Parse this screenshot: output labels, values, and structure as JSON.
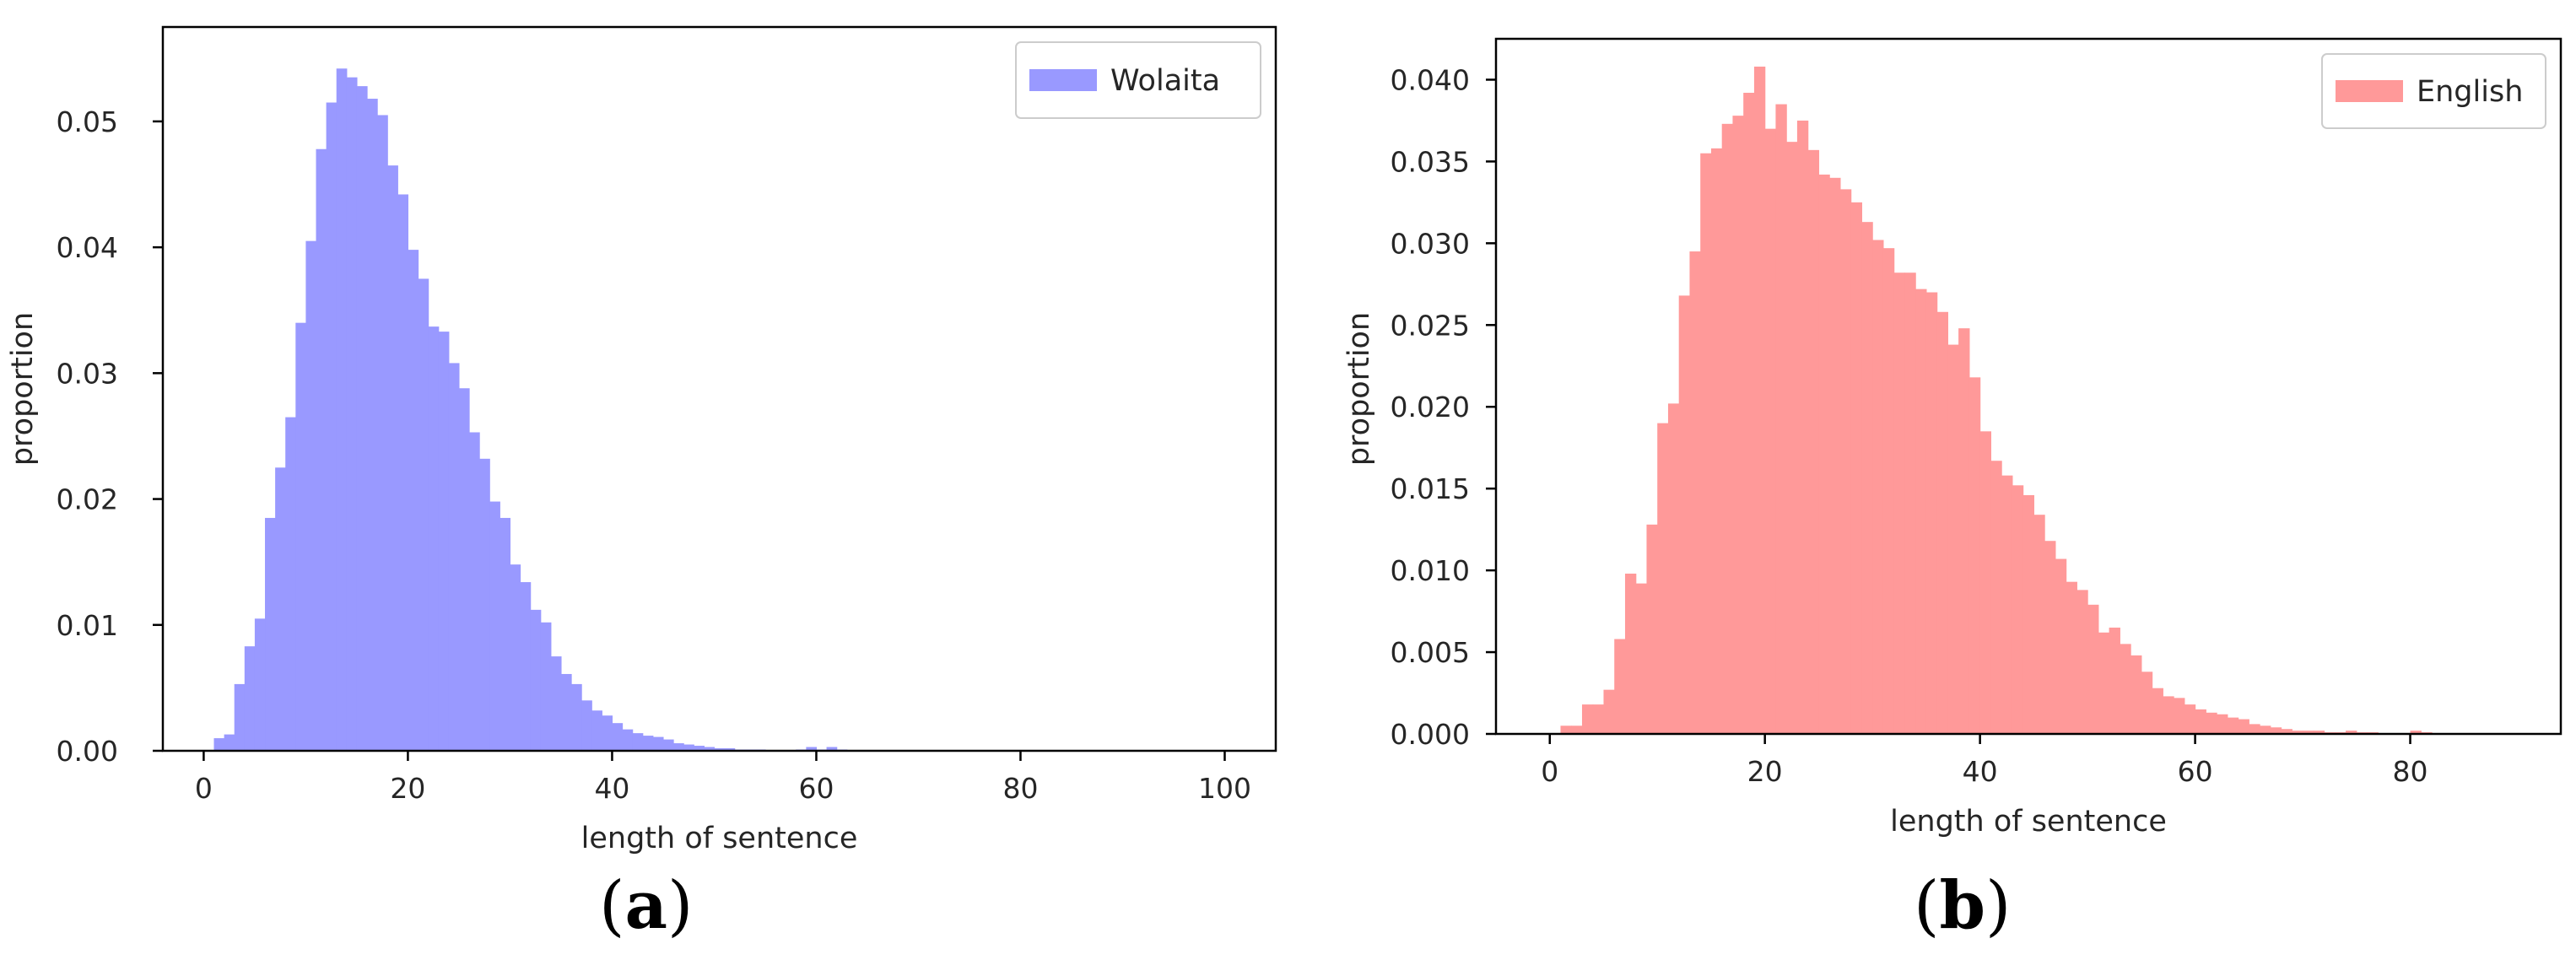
{
  "chart_data": [
    {
      "panel": "(a)",
      "type": "bar",
      "xlabel": "length of sentence",
      "ylabel": "proportion",
      "xlim": [
        -4,
        105
      ],
      "ylim": [
        0,
        0.0575
      ],
      "xticks": [
        0,
        20,
        40,
        60,
        80,
        100
      ],
      "yticks": [
        0.0,
        0.01,
        0.02,
        0.03,
        0.04,
        0.05
      ],
      "ytick_labels": [
        "0.00",
        "0.01",
        "0.02",
        "0.03",
        "0.04",
        "0.05"
      ],
      "legend": {
        "label": "Wolaita",
        "position": "top-right"
      },
      "color": "#9999ff",
      "bin_width": 1,
      "bin_starts": [
        0,
        1,
        2,
        3,
        4,
        5,
        6,
        7,
        8,
        9,
        10,
        11,
        12,
        13,
        14,
        15,
        16,
        17,
        18,
        19,
        20,
        21,
        22,
        23,
        24,
        25,
        26,
        27,
        28,
        29,
        30,
        31,
        32,
        33,
        34,
        35,
        36,
        37,
        38,
        39,
        40,
        41,
        42,
        43,
        44,
        45,
        46,
        47,
        48,
        49,
        50,
        51,
        52,
        53,
        54,
        55,
        56,
        57,
        58,
        59,
        60,
        61,
        62,
        63,
        64
      ],
      "values": [
        0.0,
        0.001,
        0.0013,
        0.0053,
        0.0083,
        0.0105,
        0.0185,
        0.0225,
        0.0265,
        0.034,
        0.0405,
        0.0478,
        0.0515,
        0.0542,
        0.0535,
        0.0528,
        0.0518,
        0.0505,
        0.0465,
        0.0442,
        0.0398,
        0.0375,
        0.0337,
        0.0333,
        0.0308,
        0.0288,
        0.0253,
        0.0232,
        0.0198,
        0.0185,
        0.0148,
        0.0134,
        0.0112,
        0.0102,
        0.0075,
        0.0061,
        0.0053,
        0.004,
        0.0032,
        0.0028,
        0.0022,
        0.0017,
        0.0014,
        0.0012,
        0.0011,
        0.0009,
        0.0006,
        0.0005,
        0.0004,
        0.0003,
        0.0002,
        0.0002,
        0.0001,
        0.0001,
        0.0001,
        0.0,
        0.0,
        0.0,
        0.0001,
        0.0003,
        0.0001,
        0.0003,
        0.0001,
        0.0,
        0.0
      ]
    },
    {
      "panel": "(b)",
      "type": "bar",
      "xlabel": "length of sentence",
      "ylabel": "proportion",
      "xlim": [
        -5,
        94
      ],
      "ylim": [
        0,
        0.0425
      ],
      "xticks": [
        0,
        20,
        40,
        60,
        80
      ],
      "yticks": [
        0.0,
        0.005,
        0.01,
        0.015,
        0.02,
        0.025,
        0.03,
        0.035,
        0.04
      ],
      "ytick_labels": [
        "0.000",
        "0.005",
        "0.010",
        "0.015",
        "0.020",
        "0.025",
        "0.030",
        "0.035",
        "0.040"
      ],
      "legend": {
        "label": "English",
        "position": "top-right"
      },
      "color": "#ff9999",
      "bin_width": 1,
      "bin_starts": [
        0,
        1,
        2,
        3,
        4,
        5,
        6,
        7,
        8,
        9,
        10,
        11,
        12,
        13,
        14,
        15,
        16,
        17,
        18,
        19,
        20,
        21,
        22,
        23,
        24,
        25,
        26,
        27,
        28,
        29,
        30,
        31,
        32,
        33,
        34,
        35,
        36,
        37,
        38,
        39,
        40,
        41,
        42,
        43,
        44,
        45,
        46,
        47,
        48,
        49,
        50,
        51,
        52,
        53,
        54,
        55,
        56,
        57,
        58,
        59,
        60,
        61,
        62,
        63,
        64,
        65,
        66,
        67,
        68,
        69,
        70,
        71,
        72,
        73,
        74,
        75,
        76,
        77,
        78,
        79,
        80,
        81,
        82,
        83,
        84,
        85,
        86,
        87,
        88,
        89
      ],
      "values": [
        0.0,
        0.0005,
        0.0005,
        0.0018,
        0.0018,
        0.0027,
        0.0058,
        0.0098,
        0.0092,
        0.0128,
        0.019,
        0.0202,
        0.0268,
        0.0295,
        0.0355,
        0.0358,
        0.0373,
        0.0378,
        0.0392,
        0.0408,
        0.037,
        0.0385,
        0.0362,
        0.0375,
        0.0357,
        0.0342,
        0.034,
        0.0333,
        0.0325,
        0.0313,
        0.0302,
        0.0297,
        0.0282,
        0.0282,
        0.0272,
        0.027,
        0.0258,
        0.0238,
        0.0248,
        0.0218,
        0.0185,
        0.0167,
        0.0158,
        0.0152,
        0.0146,
        0.0134,
        0.0118,
        0.0107,
        0.0093,
        0.0088,
        0.0079,
        0.0062,
        0.0065,
        0.0055,
        0.0048,
        0.0038,
        0.0028,
        0.0023,
        0.0022,
        0.0018,
        0.0015,
        0.0013,
        0.0012,
        0.001,
        0.0009,
        0.0006,
        0.0005,
        0.0004,
        0.0003,
        0.0002,
        0.0002,
        0.0002,
        0.0001,
        0.0001,
        0.0002,
        0.0001,
        0.0001,
        0.0,
        0.0,
        0.0,
        0.0002,
        0.0001,
        0.0,
        0.0,
        0.0,
        0.0,
        0.0,
        0.0,
        0.0,
        0.0
      ]
    }
  ]
}
